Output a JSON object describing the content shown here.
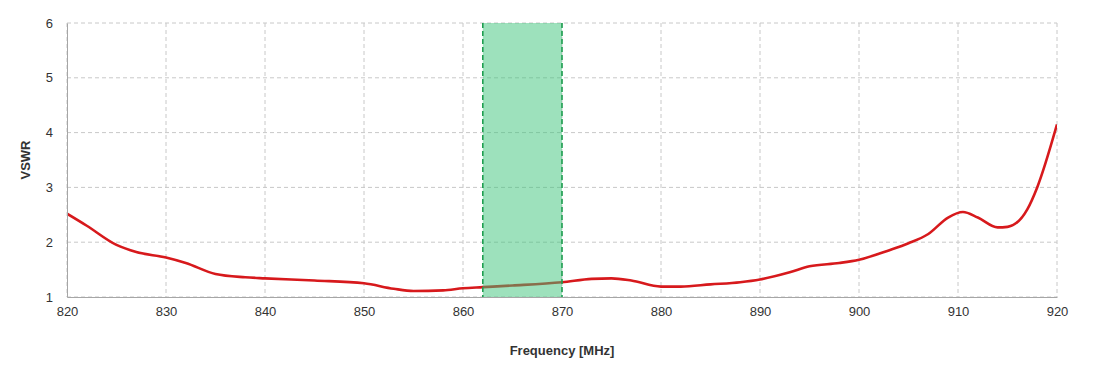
{
  "chart_data": {
    "type": "line",
    "x_label": "Frequency [MHz]",
    "y_label": "VSWR",
    "x": [
      820,
      822,
      825,
      827,
      830,
      832,
      835,
      838,
      840,
      845,
      850,
      853,
      855,
      858,
      860,
      862,
      865,
      870,
      873,
      875,
      877,
      880,
      882,
      885,
      888,
      890,
      893,
      895,
      898,
      900,
      903,
      905,
      907,
      909,
      910.5,
      912,
      914,
      915,
      917,
      918,
      920
    ],
    "values": [
      2.52,
      2.3,
      1.95,
      1.82,
      1.72,
      1.62,
      1.42,
      1.36,
      1.34,
      1.3,
      1.25,
      1.15,
      1.11,
      1.12,
      1.16,
      1.18,
      1.21,
      1.27,
      1.33,
      1.34,
      1.3,
      1.19,
      1.19,
      1.23,
      1.27,
      1.32,
      1.45,
      1.56,
      1.62,
      1.68,
      1.85,
      1.98,
      2.15,
      2.45,
      2.55,
      2.45,
      2.27,
      2.28,
      2.6,
      3.0,
      4.15
    ],
    "color": "#d7191c",
    "highlight_range": [
      862,
      870
    ],
    "xlim": [
      820,
      920
    ],
    "xticks": [
      820,
      830,
      840,
      850,
      860,
      870,
      880,
      890,
      900,
      910,
      920
    ],
    "ylim": [
      1,
      6
    ],
    "yticks": [
      1,
      2,
      3,
      4,
      5,
      6
    ],
    "grid": true
  }
}
